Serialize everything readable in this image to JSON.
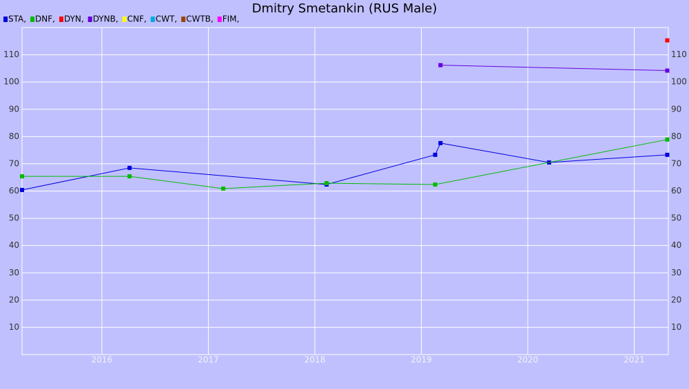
{
  "chart_data": {
    "type": "line",
    "title": "Dmitry Smetankin (RUS Male)",
    "xlim": [
      2015.25,
      2021.32
    ],
    "xticks": [
      2016,
      2017,
      2018,
      2019,
      2020,
      2021
    ],
    "ylim": [
      0,
      120
    ],
    "yticks": [
      10,
      20,
      30,
      40,
      50,
      60,
      70,
      80,
      90,
      100,
      110
    ],
    "grid": true,
    "legend": "top-left",
    "series": [
      {
        "name": "STA,",
        "color": "#0000dd",
        "x": [
          2015.25,
          2016.26,
          2018.11,
          2019.13,
          2019.18,
          2020.2,
          2021.31
        ],
        "values": [
          60.4,
          68.5,
          62.4,
          73.3,
          77.6,
          70.5,
          73.3
        ]
      },
      {
        "name": "DNF,",
        "color": "#00bb00",
        "x": [
          2015.25,
          2016.26,
          2017.14,
          2018.11,
          2019.13,
          2021.31
        ],
        "values": [
          65.4,
          65.4,
          60.9,
          62.9,
          62.4,
          78.9
        ]
      },
      {
        "name": "DYN,",
        "color": "#ff0000",
        "x": [
          2021.31
        ],
        "values": [
          115.3
        ]
      },
      {
        "name": "DYNB,",
        "color": "#6600dd",
        "x": [
          2019.18,
          2021.31
        ],
        "values": [
          106.2,
          104.2
        ]
      },
      {
        "name": "CNF,",
        "color": "#ffff00",
        "x": [],
        "values": []
      },
      {
        "name": "CWT,",
        "color": "#00aadd",
        "x": [],
        "values": []
      },
      {
        "name": "CWTB,",
        "color": "#994400",
        "x": [],
        "values": []
      },
      {
        "name": "FIM,",
        "color": "#ff00ff",
        "x": [],
        "values": []
      }
    ]
  }
}
